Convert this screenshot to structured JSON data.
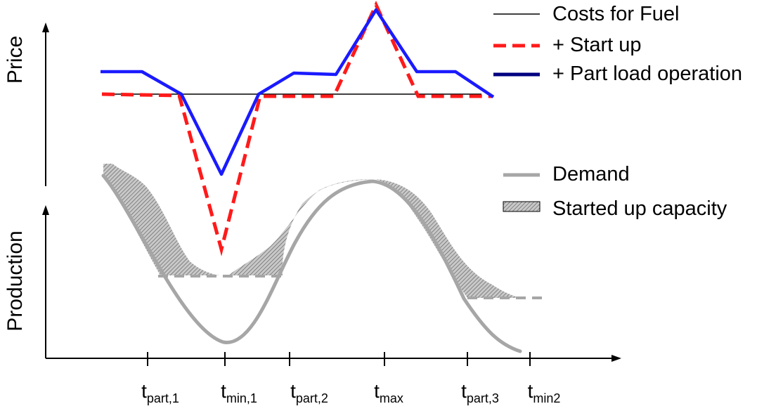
{
  "labels": {
    "price_axis": "Price",
    "production_axis": "Production"
  },
  "legend": {
    "fuel": "Costs for Fuel",
    "startup": "+ Start up",
    "partload": "+ Part load operation",
    "demand": "Demand",
    "capacity": "Started up capacity"
  },
  "time_ticks": [
    {
      "main": "t",
      "sub": "part,1"
    },
    {
      "main": "t",
      "sub": "min,1"
    },
    {
      "main": "t",
      "sub": "part,2"
    },
    {
      "main": "t",
      "sub": "max"
    },
    {
      "main": "t",
      "sub": "part,3"
    },
    {
      "main": "t",
      "sub": "min2"
    }
  ],
  "colors": {
    "fuel": "#000000",
    "startup": "#ff1a1a",
    "partload": "#1a1aff",
    "partload_legend": "#000080",
    "demand": "#a6a6a6",
    "capacity": "#a0a0a0"
  }
}
